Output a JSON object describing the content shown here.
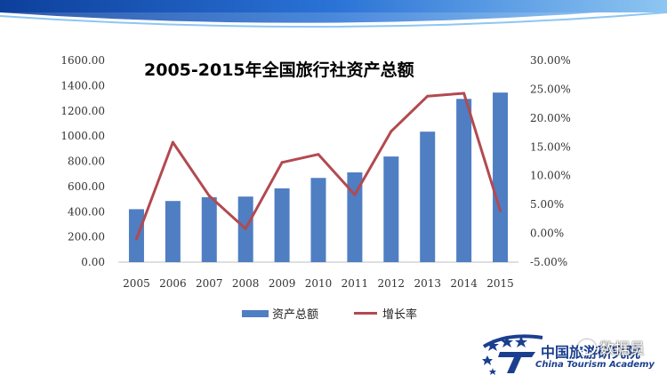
{
  "chart_data": {
    "type": "bar+line",
    "title": "2005-2015年全国旅行社资产总额",
    "categories": [
      "2005",
      "2006",
      "2007",
      "2008",
      "2009",
      "2010",
      "2011",
      "2012",
      "2013",
      "2014",
      "2015"
    ],
    "series": [
      {
        "name": "资产总额",
        "type": "bar",
        "axis": "left",
        "color": "#4f7ec3",
        "values": [
          420,
          485,
          515,
          520,
          585,
          668,
          712,
          838,
          1035,
          1295,
          1345
        ]
      },
      {
        "name": "增长率",
        "type": "line",
        "axis": "right",
        "color": "#b24a50",
        "values": [
          -1.0,
          15.8,
          6.5,
          0.8,
          12.3,
          13.7,
          6.7,
          17.7,
          23.8,
          24.3,
          3.9
        ]
      }
    ],
    "y_left": {
      "min": 0,
      "max": 1600,
      "ticks": [
        "0.00",
        "200.00",
        "400.00",
        "600.00",
        "800.00",
        "1000.00",
        "1200.00",
        "1400.00",
        "1600.00"
      ]
    },
    "y_right": {
      "min": -5,
      "max": 30,
      "ticks": [
        "-5.00%",
        "0.00%",
        "5.00%",
        "10.00%",
        "15.00%",
        "20.00%",
        "25.00%",
        "30.00%"
      ]
    },
    "grid": false,
    "legend_position": "bottom"
  },
  "branding": {
    "org_name": "中国旅游研究院",
    "org_name_en": "China Tourism Academy",
    "watermark": "数据员"
  },
  "colors": {
    "bar": "#4f7ec3",
    "line": "#b24a50",
    "header": "#1b5bb5"
  }
}
